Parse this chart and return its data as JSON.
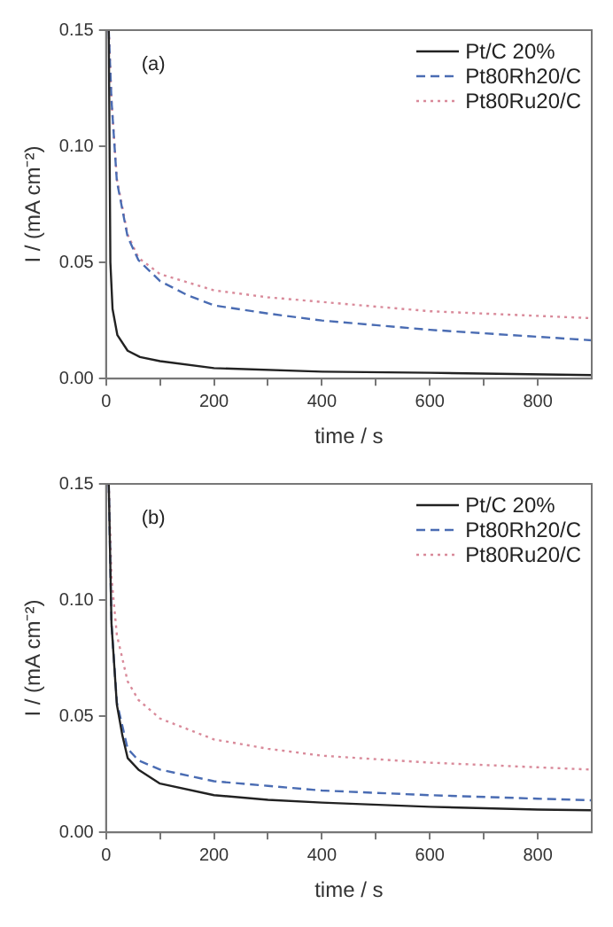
{
  "chart_data": [
    {
      "type": "line",
      "annotations": [
        "(a)"
      ],
      "xlabel": "time / s",
      "ylabel": "I / (mA cm⁻²)",
      "legend": "top right",
      "xlim": [
        0,
        900
      ],
      "xticks": [
        0,
        {
          "value": 100,
          "label": null
        },
        200,
        {
          "value": 300,
          "label": null
        },
        400,
        {
          "value": 500,
          "label": null
        },
        600,
        {
          "value": 700,
          "label": null
        },
        800
      ],
      "ylim": [
        0,
        0.15
      ],
      "yticks": [
        {
          "value": 0,
          "label": "0.00"
        },
        {
          "value": 0.05,
          "label": "0.05"
        },
        {
          "value": 0.1,
          "label": "0.10"
        },
        {
          "value": 0.15,
          "label": "0.15"
        }
      ],
      "series": [
        {
          "name": "Pt/C 20%",
          "color": "#222222",
          "line_style": "solid",
          "x": [
            5,
            8,
            12,
            21,
            40,
            63,
            100,
            200,
            400,
            600,
            900
          ],
          "values": [
            0.15,
            0.05,
            0.03,
            0.0187,
            0.012,
            0.0093,
            0.0075,
            0.0045,
            0.003,
            0.0025,
            0.0015
          ]
        },
        {
          "name": "Pt80Rh20/C",
          "color": "#4a6cb3",
          "line_style": "dashed",
          "x": [
            5,
            10,
            20,
            40,
            60,
            100,
            150,
            200,
            300,
            400,
            500,
            600,
            700,
            800,
            900
          ],
          "values": [
            0.15,
            0.12,
            0.085,
            0.061,
            0.051,
            0.042,
            0.036,
            0.0315,
            0.028,
            0.025,
            0.023,
            0.021,
            0.0195,
            0.018,
            0.0165
          ]
        },
        {
          "name": "Pt80Ru20/C",
          "color": "#d98a9a",
          "line_style": "dotted",
          "x": [
            5,
            10,
            20,
            40,
            60,
            100,
            200,
            300,
            400,
            500,
            600,
            700,
            800,
            900
          ],
          "values": [
            0.15,
            0.12,
            0.086,
            0.062,
            0.052,
            0.045,
            0.038,
            0.035,
            0.033,
            0.031,
            0.029,
            0.028,
            0.027,
            0.026
          ]
        }
      ]
    },
    {
      "type": "line",
      "annotations": [
        "(b)"
      ],
      "xlabel": "time / s",
      "ylabel": "I / (mA cm⁻²)",
      "legend": "top right",
      "xlim": [
        0,
        900
      ],
      "xticks": [
        0,
        {
          "value": 100,
          "label": null
        },
        200,
        {
          "value": 300,
          "label": null
        },
        400,
        {
          "value": 500,
          "label": null
        },
        600,
        {
          "value": 700,
          "label": null
        },
        800
      ],
      "ylim": [
        0,
        0.15
      ],
      "yticks": [
        {
          "value": 0,
          "label": "0.00"
        },
        {
          "value": 0.05,
          "label": "0.05"
        },
        {
          "value": 0.1,
          "label": "0.10"
        },
        {
          "value": 0.15,
          "label": "0.15"
        }
      ],
      "series": [
        {
          "name": "Pt/C 20%",
          "color": "#222222",
          "line_style": "solid",
          "x": [
            5,
            10,
            20,
            30,
            40,
            60,
            100,
            200,
            300,
            400,
            600,
            800,
            900
          ],
          "values": [
            0.15,
            0.09,
            0.055,
            0.042,
            0.032,
            0.027,
            0.021,
            0.016,
            0.014,
            0.0128,
            0.011,
            0.0098,
            0.0095
          ]
        },
        {
          "name": "Pt80Rh20/C",
          "color": "#4a6cb3",
          "line_style": "dashed",
          "x": [
            5,
            10,
            20,
            40,
            60,
            100,
            200,
            300,
            400,
            600,
            800,
            900
          ],
          "values": [
            0.15,
            0.09,
            0.056,
            0.036,
            0.031,
            0.027,
            0.022,
            0.02,
            0.018,
            0.016,
            0.0145,
            0.0138
          ]
        },
        {
          "name": "Pt80Ru20/C",
          "color": "#d98a9a",
          "line_style": "dotted",
          "x": [
            5,
            10,
            20,
            40,
            60,
            100,
            200,
            300,
            400,
            600,
            800,
            900
          ],
          "values": [
            0.15,
            0.11,
            0.085,
            0.065,
            0.057,
            0.049,
            0.04,
            0.036,
            0.033,
            0.03,
            0.028,
            0.027
          ]
        }
      ]
    }
  ]
}
